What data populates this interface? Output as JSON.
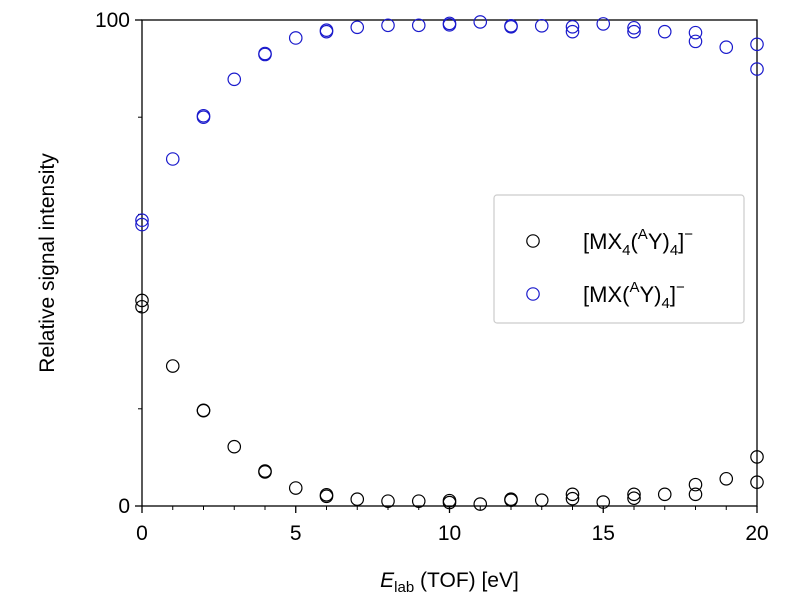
{
  "chart_data": {
    "type": "scatter",
    "title": "",
    "xlabel": {
      "main": "E",
      "sub": "lab",
      "rest": " (TOF) [eV]"
    },
    "ylabel": "Relative signal intensity",
    "xlim": [
      0,
      20
    ],
    "ylim": [
      0,
      100
    ],
    "x_ticks": [
      0,
      5,
      10,
      15,
      20
    ],
    "x_tick_labels": [
      "0",
      "5",
      "10",
      "15",
      "20"
    ],
    "y_ticks": [
      0,
      100
    ],
    "y_tick_labels": [
      "0",
      "100"
    ],
    "x_minor_step": 1,
    "y_minor_step": 20,
    "grid": false,
    "legend_position": "center-right",
    "marker": "open-circle",
    "series": [
      {
        "name": "[MX4(AY)4]−",
        "label_parts": [
          {
            "t": "[MX"
          },
          {
            "t": "4",
            "sub": true
          },
          {
            "t": "("
          },
          {
            "t": "A",
            "sup": true
          },
          {
            "t": "Y)"
          },
          {
            "t": "4",
            "sub": true
          },
          {
            "t": "]"
          },
          {
            "t": "−",
            "sup": true
          }
        ],
        "color": "#000000",
        "points": [
          [
            0,
            42.3
          ],
          [
            0,
            41.0
          ],
          [
            1,
            28.8
          ],
          [
            2,
            19.6
          ],
          [
            2,
            19.7
          ],
          [
            3,
            12.2
          ],
          [
            4,
            7.2
          ],
          [
            4,
            7.0
          ],
          [
            5,
            3.7
          ],
          [
            6,
            2.3
          ],
          [
            6,
            2.0
          ],
          [
            7,
            1.4
          ],
          [
            8,
            1.0
          ],
          [
            9,
            1.0
          ],
          [
            10,
            1.1
          ],
          [
            10,
            0.7
          ],
          [
            11,
            0.4
          ],
          [
            12,
            1.4
          ],
          [
            12,
            1.2
          ],
          [
            13,
            1.2
          ],
          [
            14,
            2.4
          ],
          [
            14,
            1.5
          ],
          [
            15,
            0.8
          ],
          [
            16,
            2.4
          ],
          [
            16,
            1.6
          ],
          [
            17,
            2.4
          ],
          [
            18,
            4.4
          ],
          [
            18,
            2.4
          ],
          [
            19,
            5.6
          ],
          [
            20,
            10.1
          ],
          [
            20,
            4.9
          ]
        ]
      },
      {
        "name": "[MX(AY)4]−",
        "label_parts": [
          {
            "t": "[MX("
          },
          {
            "t": "A",
            "sup": true
          },
          {
            "t": "Y)"
          },
          {
            "t": "4",
            "sub": true
          },
          {
            "t": "]"
          },
          {
            "t": "−",
            "sup": true
          }
        ],
        "color": "#1a1acc",
        "points": [
          [
            0,
            58.8
          ],
          [
            0,
            57.9
          ],
          [
            1,
            71.4
          ],
          [
            2,
            80.0
          ],
          [
            2,
            80.3
          ],
          [
            3,
            87.8
          ],
          [
            4,
            92.9
          ],
          [
            4,
            93.1
          ],
          [
            5,
            96.3
          ],
          [
            6,
            97.6
          ],
          [
            6,
            97.9
          ],
          [
            7,
            98.5
          ],
          [
            8,
            98.9
          ],
          [
            9,
            98.9
          ],
          [
            10,
            99.0
          ],
          [
            10,
            99.3
          ],
          [
            11,
            99.6
          ],
          [
            12,
            98.6
          ],
          [
            12,
            98.8
          ],
          [
            13,
            98.8
          ],
          [
            14,
            98.6
          ],
          [
            14,
            97.6
          ],
          [
            15,
            99.2
          ],
          [
            16,
            98.4
          ],
          [
            16,
            97.6
          ],
          [
            17,
            97.6
          ],
          [
            18,
            97.4
          ],
          [
            18,
            95.6
          ],
          [
            19,
            94.4
          ],
          [
            20,
            95.0
          ],
          [
            20,
            89.9
          ]
        ]
      }
    ]
  }
}
